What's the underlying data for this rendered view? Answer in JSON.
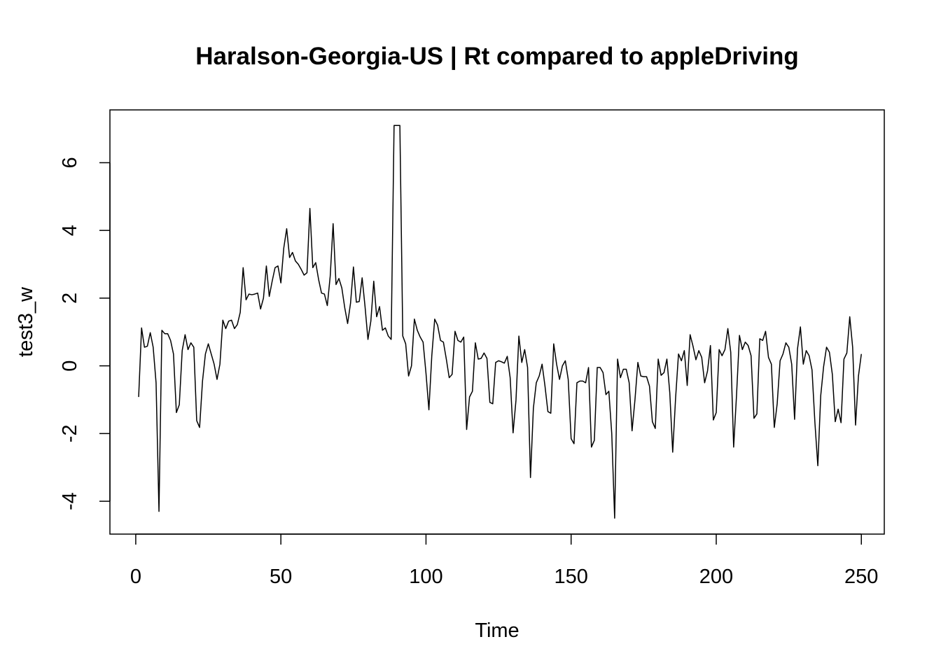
{
  "chart_data": {
    "type": "line",
    "title": "Haralson-Georgia-US | Rt compared to appleDriving",
    "xlabel": "Time",
    "ylabel": "test3_w",
    "xlim": [
      -8.9,
      257.9
    ],
    "ylim": [
      -4.97,
      7.56
    ],
    "x_ticks": [
      0,
      50,
      100,
      150,
      200,
      250
    ],
    "y_ticks": [
      -4,
      -2,
      0,
      2,
      4,
      6
    ],
    "grid": false,
    "line_color": "#000000",
    "series": [
      {
        "x_start": 1,
        "values": [
          -0.92,
          1.12,
          0.55,
          0.58,
          0.98,
          0.55,
          -0.5,
          -4.3,
          1.05,
          0.95,
          0.95,
          0.75,
          0.35,
          -1.38,
          -1.15,
          0.45,
          0.92,
          0.48,
          0.68,
          0.55,
          -1.62,
          -1.82,
          -0.45,
          0.35,
          0.65,
          0.35,
          0.05,
          -0.4,
          0.05,
          1.35,
          1.1,
          1.32,
          1.35,
          1.1,
          1.22,
          1.58,
          2.9,
          1.95,
          2.12,
          2.1,
          2.12,
          2.15,
          1.68,
          2.0,
          2.95,
          2.05,
          2.5,
          2.9,
          2.95,
          2.45,
          3.48,
          4.05,
          3.2,
          3.35,
          3.1,
          3.0,
          2.85,
          2.68,
          2.75,
          4.65,
          2.9,
          3.05,
          2.55,
          2.15,
          2.12,
          1.78,
          2.65,
          4.2,
          2.4,
          2.58,
          2.3,
          1.72,
          1.25,
          1.85,
          2.92,
          1.88,
          1.9,
          2.6,
          1.75,
          0.78,
          1.32,
          2.5,
          1.45,
          1.75,
          1.05,
          1.12,
          0.88,
          0.78,
          7.1,
          7.1,
          7.1,
          0.88,
          0.65,
          -0.3,
          0.0,
          1.38,
          1.05,
          0.85,
          0.7,
          -0.22,
          -1.3,
          0.3,
          1.38,
          1.2,
          0.75,
          0.7,
          0.2,
          -0.35,
          -0.25,
          1.02,
          0.75,
          0.7,
          0.85,
          -1.88,
          -0.92,
          -0.75,
          0.68,
          0.2,
          0.22,
          0.38,
          0.22,
          -1.08,
          -1.12,
          0.1,
          0.15,
          0.12,
          0.08,
          0.28,
          -0.35,
          -1.98,
          -1.02,
          0.88,
          0.1,
          0.48,
          -0.05,
          -3.3,
          -1.25,
          -0.5,
          -0.3,
          0.05,
          -0.6,
          -1.35,
          -1.4,
          0.65,
          0.05,
          -0.4,
          0.0,
          0.15,
          -0.4,
          -2.15,
          -2.3,
          -0.5,
          -0.45,
          -0.45,
          -0.5,
          -0.05,
          -2.4,
          -2.2,
          -0.05,
          -0.05,
          -0.2,
          -0.85,
          -0.75,
          -2.0,
          -4.5,
          0.2,
          -0.35,
          -0.1,
          -0.1,
          -0.5,
          -1.92,
          -1.0,
          0.1,
          -0.3,
          -0.32,
          -0.32,
          -0.6,
          -1.65,
          -1.85,
          0.2,
          -0.28,
          -0.2,
          0.2,
          -0.8,
          -2.55,
          -0.95,
          0.35,
          0.15,
          0.45,
          -0.58,
          0.92,
          0.58,
          0.18,
          0.45,
          0.25,
          -0.5,
          -0.15,
          0.6,
          -1.6,
          -1.38,
          0.48,
          0.3,
          0.48,
          1.1,
          0.4,
          -2.4,
          -0.85,
          0.9,
          0.48,
          0.7,
          0.6,
          0.3,
          -1.55,
          -1.42,
          0.8,
          0.75,
          1.02,
          0.25,
          0.05,
          -1.82,
          -1.12,
          0.15,
          0.35,
          0.68,
          0.55,
          0.05,
          -1.58,
          0.5,
          1.15,
          0.05,
          0.45,
          0.3,
          -0.12,
          -1.68,
          -2.95,
          -0.88,
          -0.02,
          0.55,
          0.4,
          -0.25,
          -1.65,
          -1.28,
          -1.68,
          0.2,
          0.38,
          1.45,
          0.55,
          -1.75,
          -0.3,
          0.35
        ]
      }
    ]
  }
}
